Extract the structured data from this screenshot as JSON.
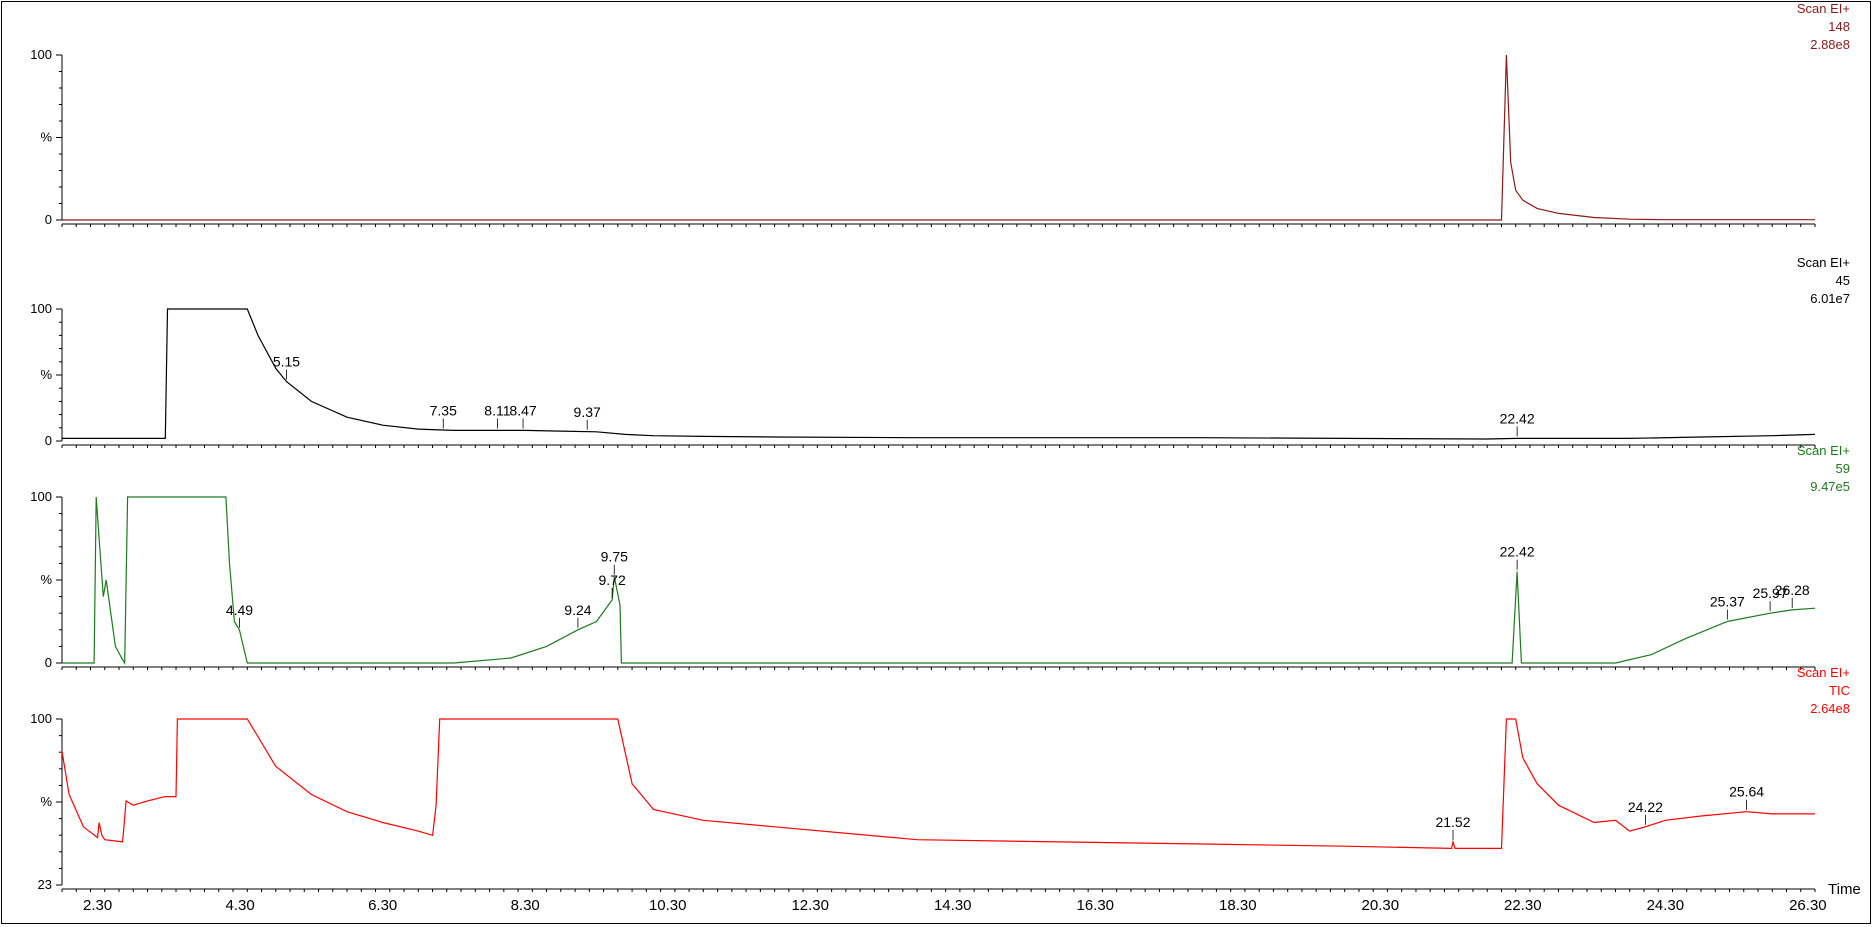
{
  "x_axis": {
    "ticks": [
      "2.30",
      "4.30",
      "6.30",
      "8.30",
      "10.30",
      "12.30",
      "14.30",
      "16.30",
      "18.30",
      "20.30",
      "22.30",
      "24.30",
      "26.30"
    ],
    "label": "Time"
  },
  "chart_data": [
    {
      "type": "line",
      "header": [
        "Scan EI+",
        "148",
        "2.88e8"
      ],
      "color": "#8b1a1a",
      "y_ticks": [
        "100",
        "%",
        "0"
      ],
      "xlim": [
        2.0,
        26.6
      ],
      "ylim": [
        0,
        100
      ],
      "x": [
        2.0,
        22.05,
        22.2,
        22.27,
        22.33,
        22.4,
        22.5,
        22.7,
        23.0,
        23.5,
        24.0,
        24.5,
        26.6
      ],
      "values": [
        0,
        0,
        0,
        100,
        35,
        18,
        12,
        7,
        4,
        1.5,
        0.5,
        0.2,
        0.2
      ],
      "peaks": []
    },
    {
      "type": "line",
      "header": [
        "Scan EI+",
        "45",
        "6.01e7"
      ],
      "color": "#000000",
      "y_ticks": [
        "100",
        "%",
        "0"
      ],
      "xlim": [
        2.0,
        26.6
      ],
      "ylim": [
        0,
        100
      ],
      "x": [
        2.0,
        3.45,
        3.48,
        3.6,
        4.6,
        4.75,
        5.0,
        5.15,
        5.5,
        6.0,
        6.5,
        7.0,
        7.5,
        8.0,
        8.5,
        9.0,
        9.5,
        9.9,
        10.3,
        11.0,
        12.0,
        14.0,
        16.0,
        18.0,
        20.0,
        22.0,
        22.42,
        23.0,
        24.0,
        25.0,
        26.0,
        26.6
      ],
      "values": [
        2,
        2,
        100,
        100,
        100,
        80,
        55,
        45,
        30,
        18,
        12,
        9,
        8,
        8,
        8,
        7.5,
        7,
        5,
        4,
        3.5,
        3,
        2.5,
        2.5,
        2.5,
        2,
        1.5,
        2,
        2,
        2,
        3,
        4,
        5
      ],
      "peaks": [
        {
          "label": "5.15",
          "x": 5.15,
          "y": 45
        },
        {
          "label": "7.35",
          "x": 7.35,
          "y": 8
        },
        {
          "label": "8.11",
          "x": 8.11,
          "y": 8
        },
        {
          "label": "8.47",
          "x": 8.47,
          "y": 8
        },
        {
          "label": "9.37",
          "x": 9.37,
          "y": 7
        },
        {
          "label": "22.42",
          "x": 22.42,
          "y": 2
        }
      ]
    },
    {
      "type": "line",
      "header": [
        "Scan EI+",
        "59",
        "9.47e5"
      ],
      "color": "#1d7a1d",
      "y_ticks": [
        "100",
        "%",
        "0"
      ],
      "xlim": [
        2.0,
        26.6
      ],
      "ylim": [
        0,
        100
      ],
      "x": [
        2.0,
        2.45,
        2.48,
        2.52,
        2.58,
        2.62,
        2.75,
        2.85,
        2.88,
        2.92,
        4.3,
        4.35,
        4.42,
        4.49,
        4.6,
        7.5,
        8.3,
        8.8,
        9.24,
        9.5,
        9.72,
        9.75,
        9.83,
        9.85,
        22.35,
        22.42,
        22.48,
        23.8,
        24.3,
        24.8,
        25.37,
        25.97,
        26.28,
        26.6
      ],
      "values": [
        0,
        0,
        100,
        75,
        40,
        50,
        10,
        2,
        0,
        100,
        100,
        60,
        25,
        20,
        0,
        0,
        3,
        10,
        20,
        25,
        38,
        52,
        35,
        0,
        0,
        55,
        0,
        0,
        5,
        15,
        25,
        30,
        32,
        33
      ],
      "peaks": [
        {
          "label": "4.49",
          "x": 4.49,
          "y": 20
        },
        {
          "label": "9.24",
          "x": 9.24,
          "y": 20
        },
        {
          "label": "9.72",
          "x": 9.72,
          "y": 38
        },
        {
          "label": "9.75",
          "x": 9.75,
          "y": 52
        },
        {
          "label": "22.42",
          "x": 22.42,
          "y": 55
        },
        {
          "label": "25.37",
          "x": 25.37,
          "y": 25
        },
        {
          "label": "25.97",
          "x": 25.97,
          "y": 30
        },
        {
          "label": "26.28",
          "x": 26.28,
          "y": 32
        }
      ]
    },
    {
      "type": "line",
      "header": [
        "Scan EI+",
        "TIC",
        "2.64e8"
      ],
      "color": "#ff0000",
      "y_ticks": [
        "100",
        "%",
        "23"
      ],
      "xlim": [
        2.0,
        26.6
      ],
      "ylim": [
        23,
        100
      ],
      "x": [
        2.0,
        2.1,
        2.3,
        2.5,
        2.52,
        2.56,
        2.6,
        2.85,
        2.9,
        3.0,
        3.2,
        3.45,
        3.6,
        3.62,
        3.75,
        4.6,
        5.0,
        5.5,
        6.0,
        6.5,
        7.0,
        7.2,
        7.25,
        7.3,
        7.35,
        9.78,
        9.8,
        10.0,
        10.3,
        11.0,
        12.0,
        14.0,
        16.0,
        18.0,
        20.0,
        21.5,
        21.52,
        21.55,
        22.2,
        22.27,
        22.4,
        22.5,
        22.7,
        23.0,
        23.5,
        23.8,
        24.0,
        24.22,
        24.5,
        25.0,
        25.64,
        26.0,
        26.6
      ],
      "values": [
        85,
        65,
        50,
        45,
        52,
        46,
        44,
        43,
        62,
        60,
        62,
        64,
        64,
        100,
        100,
        100,
        78,
        65,
        57,
        52,
        48,
        46,
        60,
        100,
        100,
        100,
        100,
        70,
        58,
        53,
        50,
        44,
        43,
        42,
        41,
        40,
        43,
        40,
        40,
        100,
        100,
        82,
        70,
        60,
        52,
        53,
        48,
        50,
        53,
        55,
        57,
        56,
        56
      ],
      "peaks": [
        {
          "label": "21.52",
          "x": 21.52,
          "y": 43
        },
        {
          "label": "24.22",
          "x": 24.22,
          "y": 50
        },
        {
          "label": "25.64",
          "x": 25.64,
          "y": 57
        }
      ]
    }
  ]
}
